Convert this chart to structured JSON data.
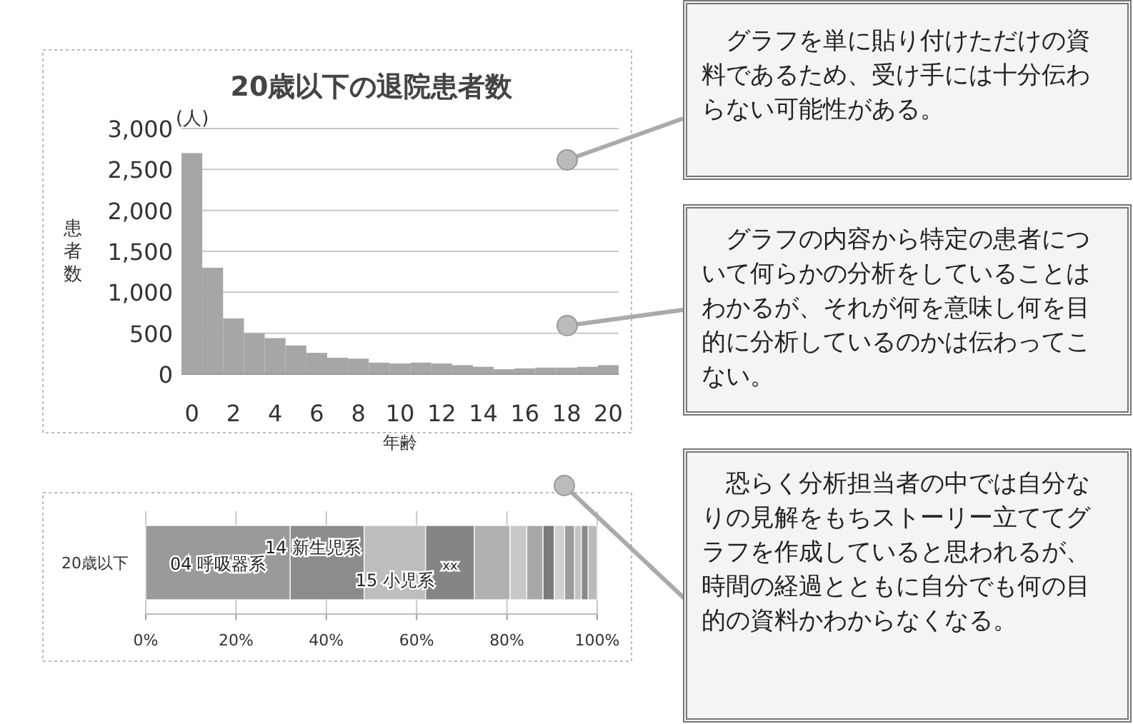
{
  "chart_data": [
    {
      "type": "bar",
      "title": "20歳以下の退院患者数",
      "xlabel": "年齢",
      "ylabel": "患者数",
      "annotations": [
        "(人)"
      ],
      "categories": [
        "0",
        null,
        "2",
        null,
        "4",
        null,
        "6",
        null,
        "8",
        null,
        "10",
        null,
        "12",
        null,
        "14",
        null,
        "16",
        null,
        "18",
        null,
        "20"
      ],
      "values": [
        2700,
        1300,
        680,
        500,
        440,
        350,
        260,
        200,
        190,
        140,
        130,
        140,
        130,
        110,
        90,
        60,
        70,
        80,
        80,
        90,
        110
      ],
      "color": "#a6a6a6",
      "ylim": [
        0,
        3000
      ],
      "yticks": [
        0,
        500,
        {
          "value": 1000,
          "label": "1,000"
        },
        {
          "value": 1500,
          "label": "1,500"
        },
        {
          "value": 2000,
          "label": "2,000"
        },
        {
          "value": 2500,
          "label": "2,500"
        },
        {
          "value": 3000,
          "label": "3,000"
        }
      ],
      "grid": "y"
    },
    {
      "type": "bar",
      "orientation": "horizontal",
      "stacked": true,
      "categories": [
        "20歳以下"
      ],
      "series": [
        {
          "name": "04 呼吸器系",
          "color": "#9a9a9a",
          "values": [
            32
          ]
        },
        {
          "name": "14 新生児系",
          "color": "#8c8c8c",
          "values": [
            16.4
          ]
        },
        {
          "name": "15 小児系",
          "color": "#bdbdbd",
          "values": [
            13.6
          ]
        },
        {
          "name": "xx",
          "color": "#858585",
          "values": [
            10.8
          ]
        },
        {
          "color": "#b0b0b0",
          "values": [
            7.9
          ]
        },
        {
          "color": "#c8c8c8",
          "values": [
            3.7
          ]
        },
        {
          "color": "#a8a8a8",
          "values": [
            3.6
          ]
        },
        {
          "color": "#7a7a7a",
          "values": [
            2.5
          ]
        },
        {
          "color": "#d0d0d0",
          "values": [
            2.3
          ]
        },
        {
          "color": "#9c9c9c",
          "values": [
            2.2
          ]
        },
        {
          "color": "#c4c4c4",
          "values": [
            1.5
          ]
        },
        {
          "color": "#8a8a8a",
          "values": [
            1.5
          ]
        },
        {
          "color": "#bababa",
          "values": [
            2
          ]
        }
      ],
      "xlim": [
        0,
        100
      ],
      "xticks": [
        {
          "value": 0,
          "label": "0%"
        },
        {
          "value": 20,
          "label": "20%"
        },
        {
          "value": 40,
          "label": "40%"
        },
        {
          "value": 60,
          "label": "60%"
        },
        {
          "value": 80,
          "label": "80%"
        },
        {
          "value": 100,
          "label": "100%"
        }
      ],
      "grid": "x"
    },
    {
      "type": "other",
      "annotations": [
        "グラフを単に貼り付けただけの資料であるため、受け手には十分伝わらない可能性がある。",
        "グラフの内容から特定の患者について何らかの分析をしていることはわかるが、それが何を意味し何を目的に分析しているのかは伝わってこない。",
        "恐らく分析担当者の中では自分なりの見解をもちストーリー立ててグラフを作成していると思われるが、時間の経過とともに自分でも何の目的の資料かわからなくなる。"
      ]
    }
  ]
}
